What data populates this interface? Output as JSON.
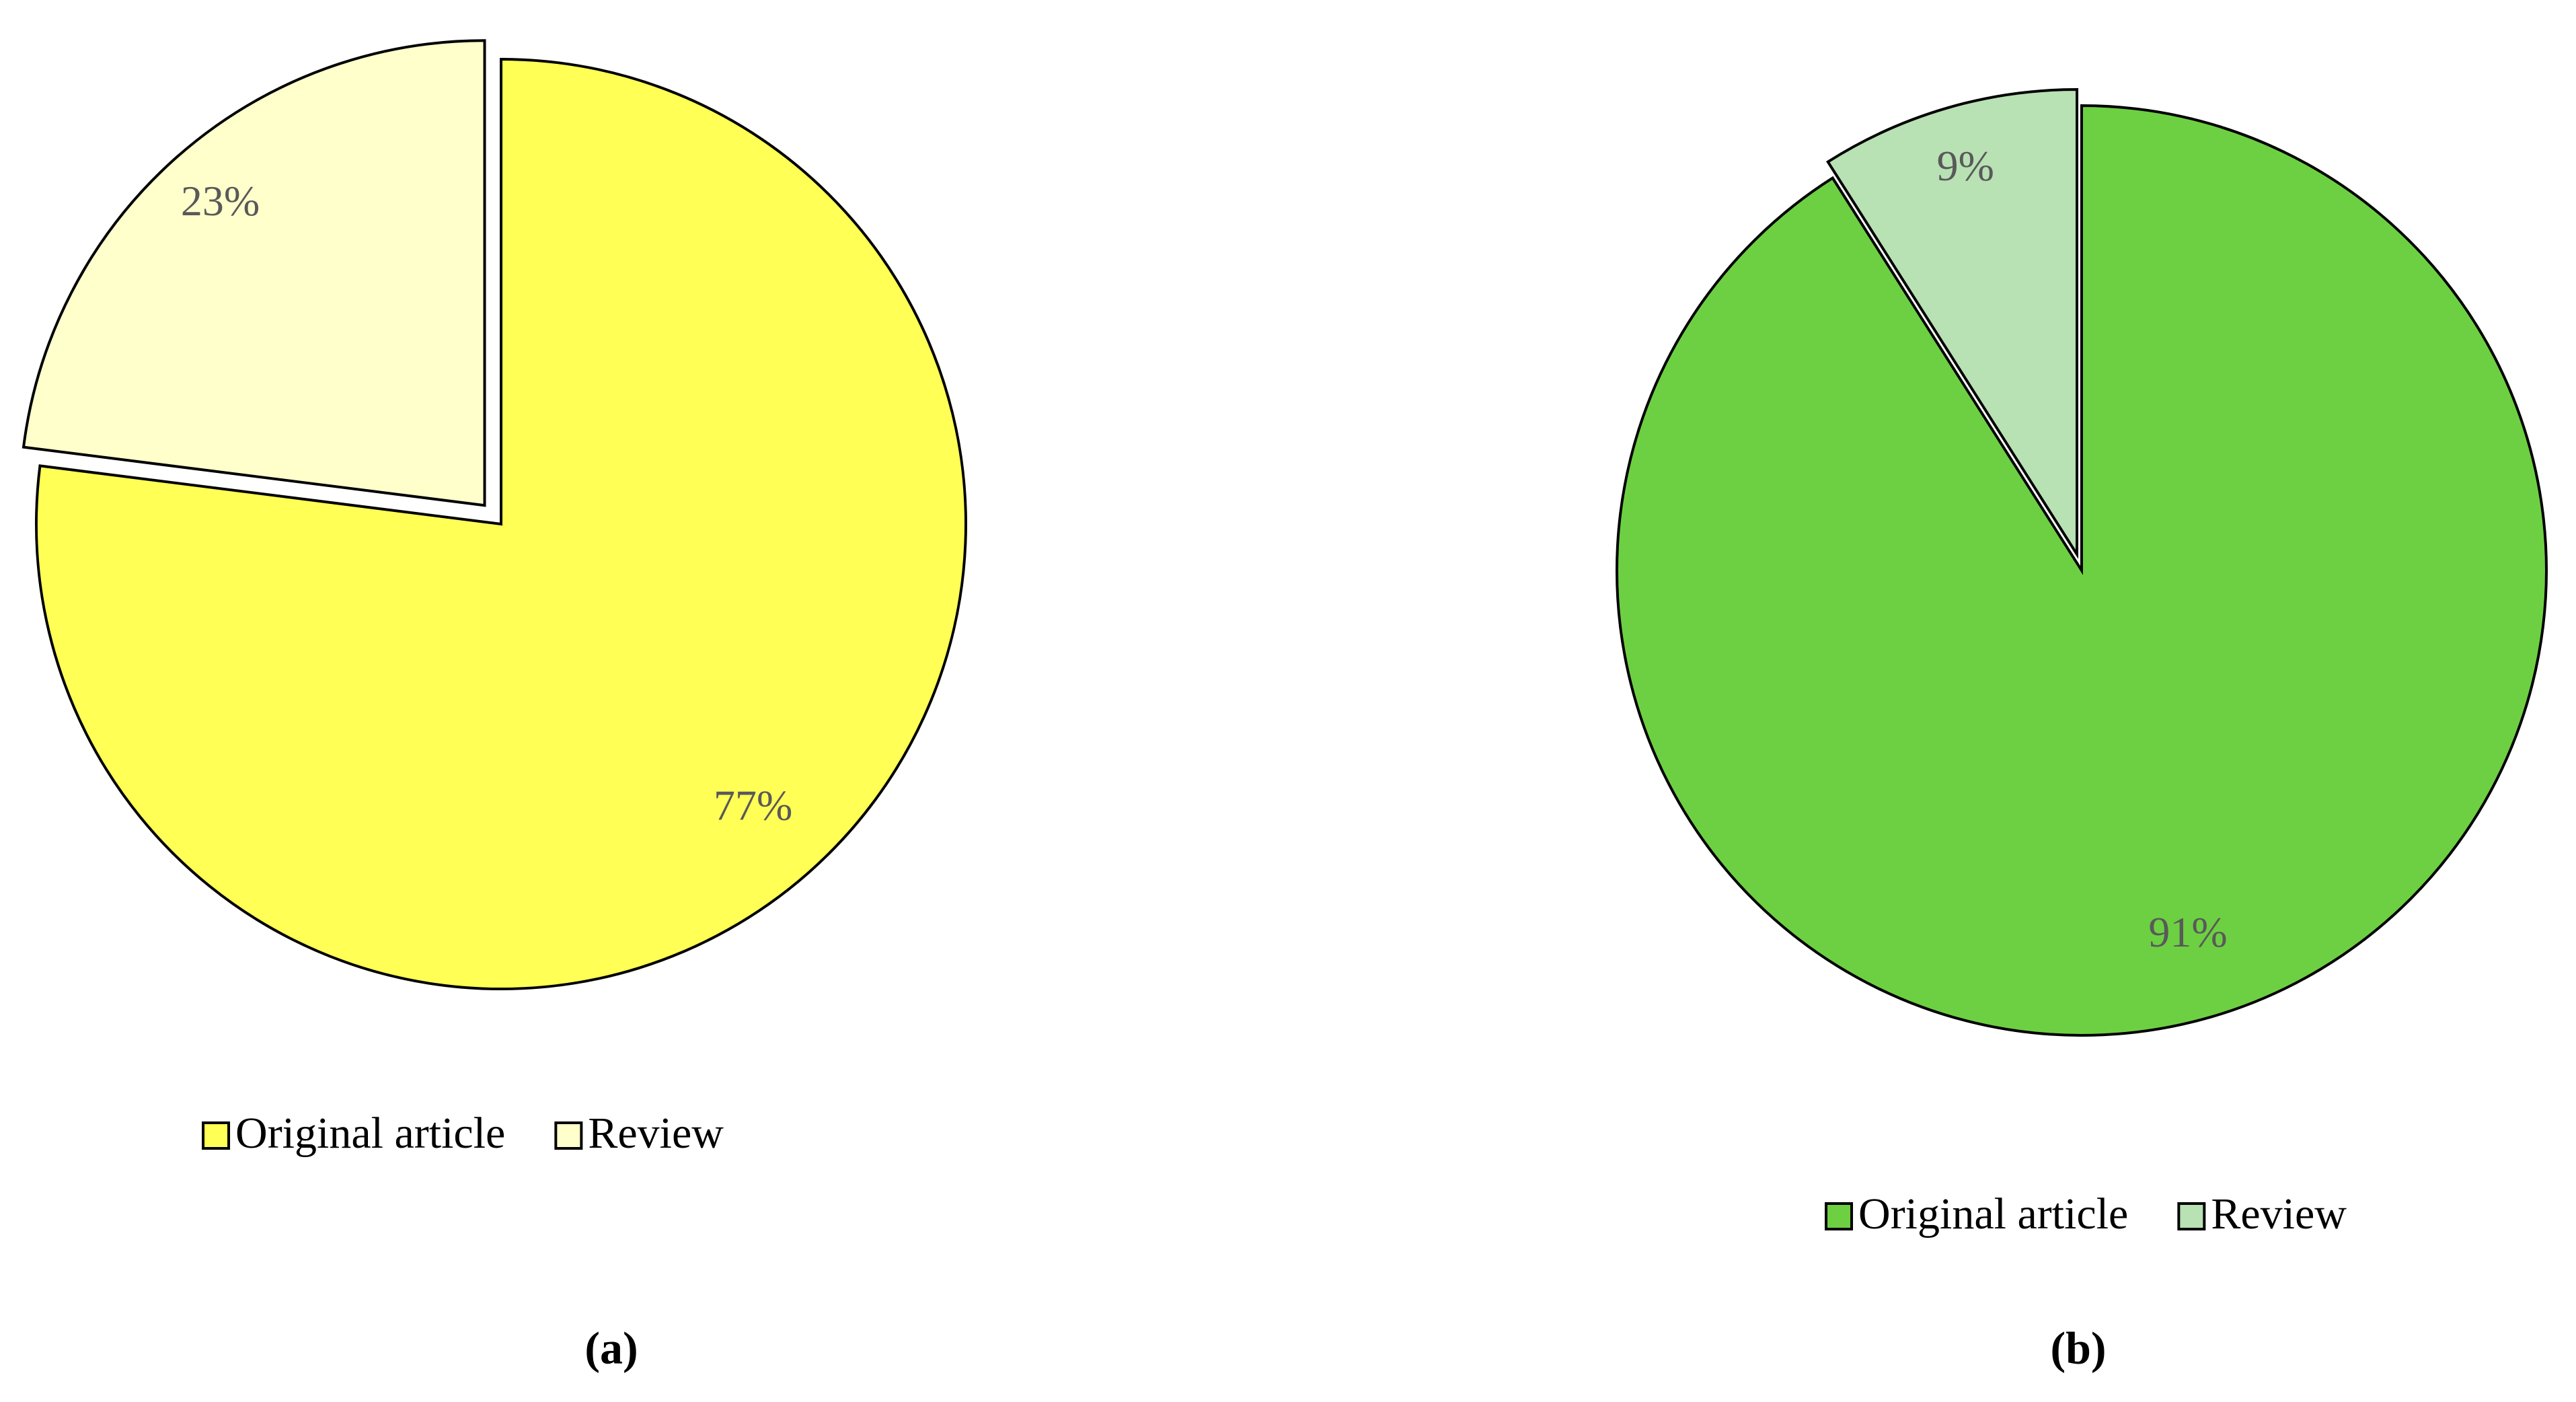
{
  "chart_data": [
    {
      "type": "pie",
      "caption": "(a)",
      "categories": [
        "Original article",
        "Review"
      ],
      "values": [
        77,
        23
      ],
      "value_labels": [
        "77%",
        "23%"
      ],
      "colors": [
        "#ffff55",
        "#ffffcc"
      ]
    },
    {
      "type": "pie",
      "caption": "(b)",
      "categories": [
        "Original article",
        "Review"
      ],
      "values": [
        91,
        9
      ],
      "value_labels": [
        "91%",
        "9%"
      ],
      "colors": [
        "#6dd042",
        "#b8e1b4"
      ]
    }
  ]
}
